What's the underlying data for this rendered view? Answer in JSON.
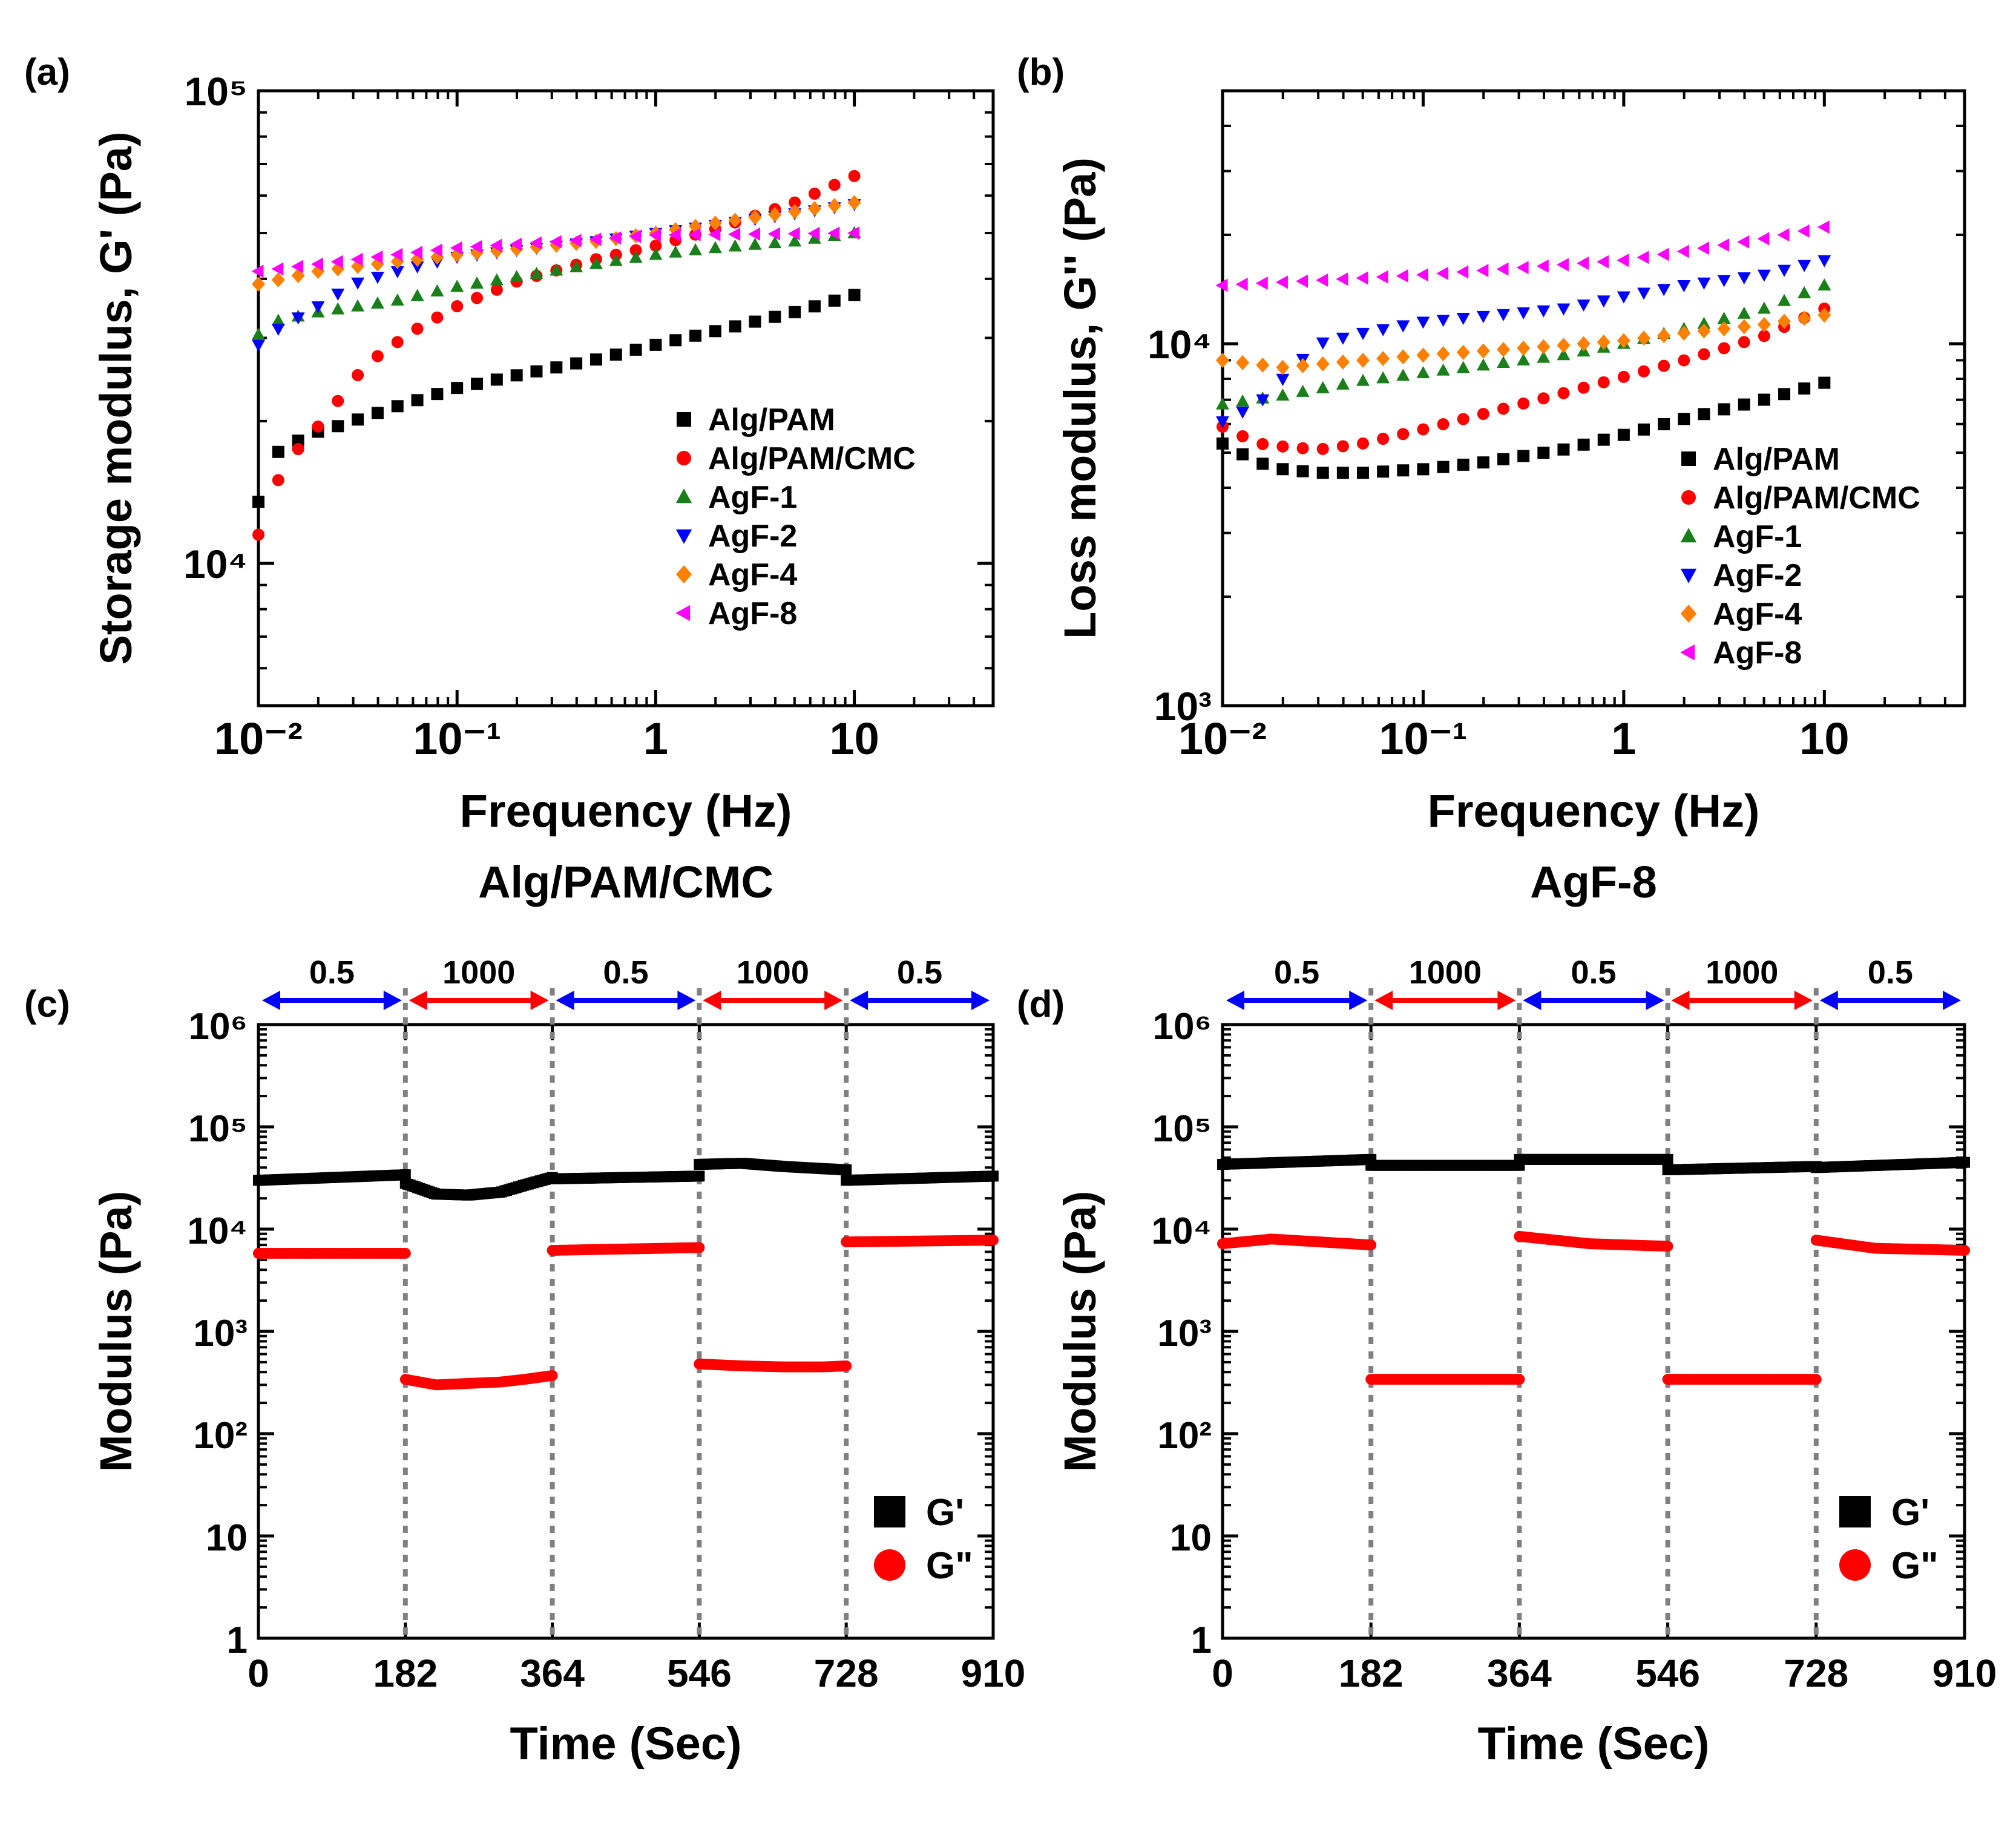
{
  "chart_data": [
    {
      "panel": "(a)",
      "type": "scatter",
      "xscale": "log",
      "yscale": "log",
      "xlim": [
        0.01,
        50
      ],
      "ylim": [
        5000,
        100000
      ],
      "xticks": [
        0.01,
        0.1,
        1,
        10
      ],
      "xtick_labels": [
        "10⁻²",
        "10⁻¹",
        "1",
        "10"
      ],
      "yticks": [
        10000,
        100000
      ],
      "ytick_labels": [
        "10⁴",
        "10⁵"
      ],
      "xlabel": "Frequency (Hz)",
      "ylabel": "Storage modulus, G' (Pa)",
      "legend_position": "lower-right",
      "x_range": [
        0.01,
        10
      ],
      "points_per_series": 31,
      "series": [
        {
          "name": "Alg/PAM",
          "marker": "square",
          "color": "#000000",
          "x": [
            0.01,
            0.012,
            0.015,
            0.02,
            0.025,
            0.03,
            0.05,
            0.1,
            0.2,
            0.5,
            1,
            2,
            5,
            10
          ],
          "values": [
            13500,
            17000,
            18000,
            19000,
            19500,
            20000,
            21500,
            23500,
            25000,
            27000,
            29000,
            31000,
            34000,
            37000
          ]
        },
        {
          "name": "Alg/PAM/CMC",
          "marker": "circle",
          "color": "#ff0000",
          "x": [
            0.01,
            0.012,
            0.015,
            0.02,
            0.025,
            0.03,
            0.04,
            0.06,
            0.1,
            0.2,
            0.5,
            1,
            2,
            5,
            10
          ],
          "values": [
            11500,
            14500,
            17000,
            19500,
            22000,
            24500,
            27500,
            31000,
            35000,
            39500,
            44000,
            47000,
            51000,
            58000,
            66000
          ]
        },
        {
          "name": "AgF-1",
          "marker": "triangle-up",
          "color": "#1a7f1a",
          "x": [
            0.01,
            0.012,
            0.02,
            0.05,
            0.1,
            0.5,
            1,
            2,
            5,
            10
          ],
          "values": [
            30500,
            32500,
            34000,
            36000,
            38500,
            43000,
            45000,
            46500,
            48000,
            50000
          ]
        },
        {
          "name": "AgF-2",
          "marker": "triangle-down",
          "color": "#0000ff",
          "x": [
            0.01,
            0.012,
            0.02,
            0.03,
            0.05,
            0.1,
            0.5,
            1,
            2,
            5,
            10
          ],
          "values": [
            29000,
            31000,
            35000,
            39000,
            41500,
            44500,
            48000,
            50000,
            52000,
            55000,
            57500
          ]
        },
        {
          "name": "AgF-4",
          "marker": "diamond",
          "color": "#ff7f00",
          "x": [
            0.01,
            0.02,
            0.05,
            0.1,
            0.5,
            1,
            2,
            5,
            10
          ],
          "values": [
            39000,
            41500,
            43500,
            45000,
            48000,
            50000,
            52500,
            55500,
            58000
          ]
        },
        {
          "name": "AgF-8",
          "marker": "triangle-left",
          "color": "#ff00ff",
          "x": [
            0.01,
            0.05,
            0.1,
            0.5,
            1,
            10
          ],
          "values": [
            41500,
            45000,
            46500,
            48500,
            49500,
            50000
          ]
        }
      ]
    },
    {
      "panel": "(b)",
      "type": "scatter",
      "xscale": "log",
      "yscale": "log",
      "xlim": [
        0.01,
        50
      ],
      "ylim": [
        1000,
        50000
      ],
      "xticks": [
        0.01,
        0.1,
        1,
        10
      ],
      "xtick_labels": [
        "10⁻²",
        "10⁻¹",
        "1",
        "10"
      ],
      "yticks": [
        1000,
        10000
      ],
      "ytick_labels": [
        "10³",
        "10⁴"
      ],
      "xlabel": "Frequency (Hz)",
      "ylabel": "Loss modulus, G'' (Pa)",
      "legend_position": "lower-right",
      "x_range": [
        0.01,
        10
      ],
      "points_per_series": 31,
      "series": [
        {
          "name": "Alg/PAM",
          "marker": "square",
          "color": "#000000",
          "x": [
            0.01,
            0.015,
            0.02,
            0.03,
            0.05,
            0.1,
            0.2,
            0.5,
            1,
            2,
            5,
            10
          ],
          "values": [
            5300,
            4700,
            4500,
            4400,
            4400,
            4500,
            4700,
            5100,
            5600,
            6200,
            7000,
            7800
          ]
        },
        {
          "name": "Alg/PAM/CMC",
          "marker": "circle",
          "color": "#ff0000",
          "x": [
            0.01,
            0.015,
            0.02,
            0.03,
            0.05,
            0.1,
            0.2,
            0.5,
            1,
            2,
            5,
            10
          ],
          "values": [
            5900,
            5300,
            5200,
            5100,
            5300,
            5800,
            6400,
            7300,
            8100,
            9000,
            10500,
            12500
          ]
        },
        {
          "name": "AgF-1",
          "marker": "triangle-up",
          "color": "#1a7f1a",
          "x": [
            0.01,
            0.02,
            0.05,
            0.1,
            0.5,
            1,
            2,
            5,
            10
          ],
          "values": [
            6800,
            7200,
            7900,
            8300,
            9300,
            10000,
            11000,
            12500,
            14500
          ]
        },
        {
          "name": "AgF-2",
          "marker": "triangle-down",
          "color": "#0000ff",
          "x": [
            0.01,
            0.015,
            0.02,
            0.03,
            0.05,
            0.1,
            0.5,
            1,
            2,
            5,
            10
          ],
          "values": [
            6100,
            6800,
            8000,
            10000,
            10700,
            11500,
            12500,
            13500,
            14500,
            15500,
            17000
          ]
        },
        {
          "name": "AgF-4",
          "marker": "diamond",
          "color": "#ff7f00",
          "x": [
            0.01,
            0.02,
            0.05,
            0.1,
            0.5,
            1,
            2,
            5,
            10
          ],
          "values": [
            9000,
            8600,
            9000,
            9300,
            9900,
            10200,
            10700,
            11300,
            12000
          ]
        },
        {
          "name": "AgF-8",
          "marker": "triangle-left",
          "color": "#ff00ff",
          "x": [
            0.01,
            0.1,
            1,
            2,
            5,
            10
          ],
          "values": [
            14500,
            15500,
            17000,
            18000,
            19500,
            21000
          ]
        }
      ]
    },
    {
      "panel": "(c)",
      "type": "scatter",
      "title": "Alg/PAM/CMC",
      "yscale": "log",
      "xlim": [
        0,
        910
      ],
      "ylim": [
        1,
        1000000
      ],
      "xticks": [
        0,
        182,
        364,
        546,
        728,
        910
      ],
      "xtick_labels": [
        "0",
        "182",
        "364",
        "546",
        "728",
        "910"
      ],
      "yticks": [
        1,
        10,
        100,
        1000,
        10000,
        100000,
        1000000
      ],
      "ytick_labels": [
        "1",
        "10",
        "10²",
        "10³",
        "10⁴",
        "10⁵",
        "10⁶"
      ],
      "xlabel": "Time (Sec)",
      "ylabel": "Modulus (Pa)",
      "legend_position": "lower-right",
      "strain_segments": [
        {
          "label": "0.5",
          "start": 0,
          "end": 182,
          "color": "#0000ff"
        },
        {
          "label": "1000",
          "start": 182,
          "end": 364,
          "color": "#ff0000"
        },
        {
          "label": "0.5",
          "start": 364,
          "end": 546,
          "color": "#0000ff"
        },
        {
          "label": "1000",
          "start": 546,
          "end": 728,
          "color": "#ff0000"
        },
        {
          "label": "0.5",
          "start": 728,
          "end": 910,
          "color": "#0000ff"
        }
      ],
      "dividers": [
        182,
        364,
        546,
        728
      ],
      "series": [
        {
          "name": "G'",
          "marker": "square",
          "color": "#000000",
          "x": [
            0,
            182,
            182,
            220,
            260,
            300,
            330,
            364,
            364,
            546,
            546,
            600,
            650,
            700,
            728,
            728,
            910
          ],
          "values": [
            30000,
            34000,
            28000,
            22000,
            21500,
            23000,
            27000,
            32000,
            31000,
            33000,
            43000,
            44000,
            41000,
            39000,
            38000,
            30000,
            33000
          ],
          "breaks_after_index": [
            1,
            7,
            9,
            14
          ]
        },
        {
          "name": "G\"",
          "marker": "circle",
          "color": "#ff0000",
          "x": [
            0,
            182,
            182,
            220,
            260,
            300,
            330,
            364,
            364,
            546,
            546,
            600,
            650,
            700,
            728,
            728,
            910
          ],
          "values": [
            5800,
            5800,
            340,
            300,
            310,
            320,
            340,
            370,
            6200,
            6600,
            480,
            460,
            450,
            450,
            460,
            7500,
            7800
          ],
          "breaks_after_index": [
            1,
            7,
            9,
            14
          ]
        }
      ]
    },
    {
      "panel": "(d)",
      "type": "scatter",
      "title": "AgF-8",
      "yscale": "log",
      "xlim": [
        0,
        910
      ],
      "ylim": [
        1,
        1000000
      ],
      "xticks": [
        0,
        182,
        364,
        546,
        728,
        910
      ],
      "xtick_labels": [
        "0",
        "182",
        "364",
        "546",
        "728",
        "910"
      ],
      "yticks": [
        1,
        10,
        100,
        1000,
        10000,
        100000,
        1000000
      ],
      "ytick_labels": [
        "1",
        "10",
        "10²",
        "10³",
        "10⁴",
        "10⁵",
        "10⁶"
      ],
      "xlabel": "Time (Sec)",
      "ylabel": "Modulus (Pa)",
      "legend_position": "lower-right",
      "strain_segments": [
        {
          "label": "0.5",
          "start": 0,
          "end": 182,
          "color": "#0000ff"
        },
        {
          "label": "1000",
          "start": 182,
          "end": 364,
          "color": "#ff0000"
        },
        {
          "label": "0.5",
          "start": 364,
          "end": 546,
          "color": "#0000ff"
        },
        {
          "label": "1000",
          "start": 546,
          "end": 728,
          "color": "#ff0000"
        },
        {
          "label": "0.5",
          "start": 728,
          "end": 910,
          "color": "#0000ff"
        }
      ],
      "dividers": [
        182,
        364,
        546,
        728
      ],
      "series": [
        {
          "name": "G'",
          "marker": "square",
          "color": "#000000",
          "x": [
            0,
            182,
            182,
            364,
            364,
            546,
            546,
            728,
            728,
            910
          ],
          "values": [
            43000,
            48000,
            42000,
            42000,
            48000,
            48000,
            38000,
            41000,
            40000,
            45000
          ],
          "breaks_after_index": [
            1,
            3,
            5,
            7
          ]
        },
        {
          "name": "G\"",
          "marker": "circle",
          "color": "#ff0000",
          "x": [
            0,
            60,
            182,
            182,
            364,
            364,
            450,
            546,
            546,
            728,
            728,
            800,
            910
          ],
          "values": [
            7200,
            8000,
            7000,
            340,
            340,
            8500,
            7200,
            6800,
            340,
            340,
            7800,
            6500,
            6200
          ],
          "breaks_after_index": [
            2,
            4,
            7,
            9
          ]
        }
      ]
    }
  ]
}
